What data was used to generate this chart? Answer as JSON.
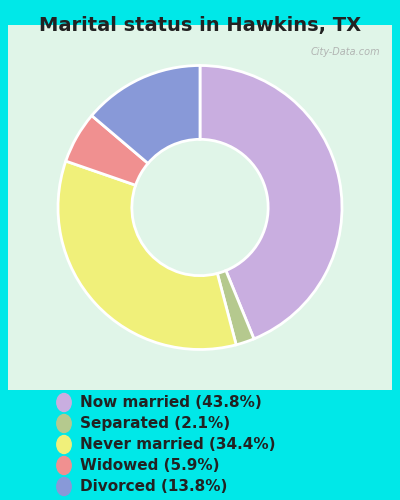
{
  "title": "Marital status in Hawkins, TX",
  "slices": [
    43.8,
    2.1,
    34.4,
    5.9,
    13.8
  ],
  "labels": [
    "Now married (43.8%)",
    "Separated (2.1%)",
    "Never married (34.4%)",
    "Widowed (5.9%)",
    "Divorced (13.8%)"
  ],
  "colors": [
    "#c9aee0",
    "#b5c98e",
    "#f0f07a",
    "#f09090",
    "#8899d8"
  ],
  "bg_color": "#00e8e8",
  "chart_bg_outer": "#c8edd8",
  "chart_bg_inner": "#e0f5e8",
  "title_fontsize": 14,
  "legend_fontsize": 11,
  "watermark": "City-Data.com",
  "donut_width": 0.52
}
